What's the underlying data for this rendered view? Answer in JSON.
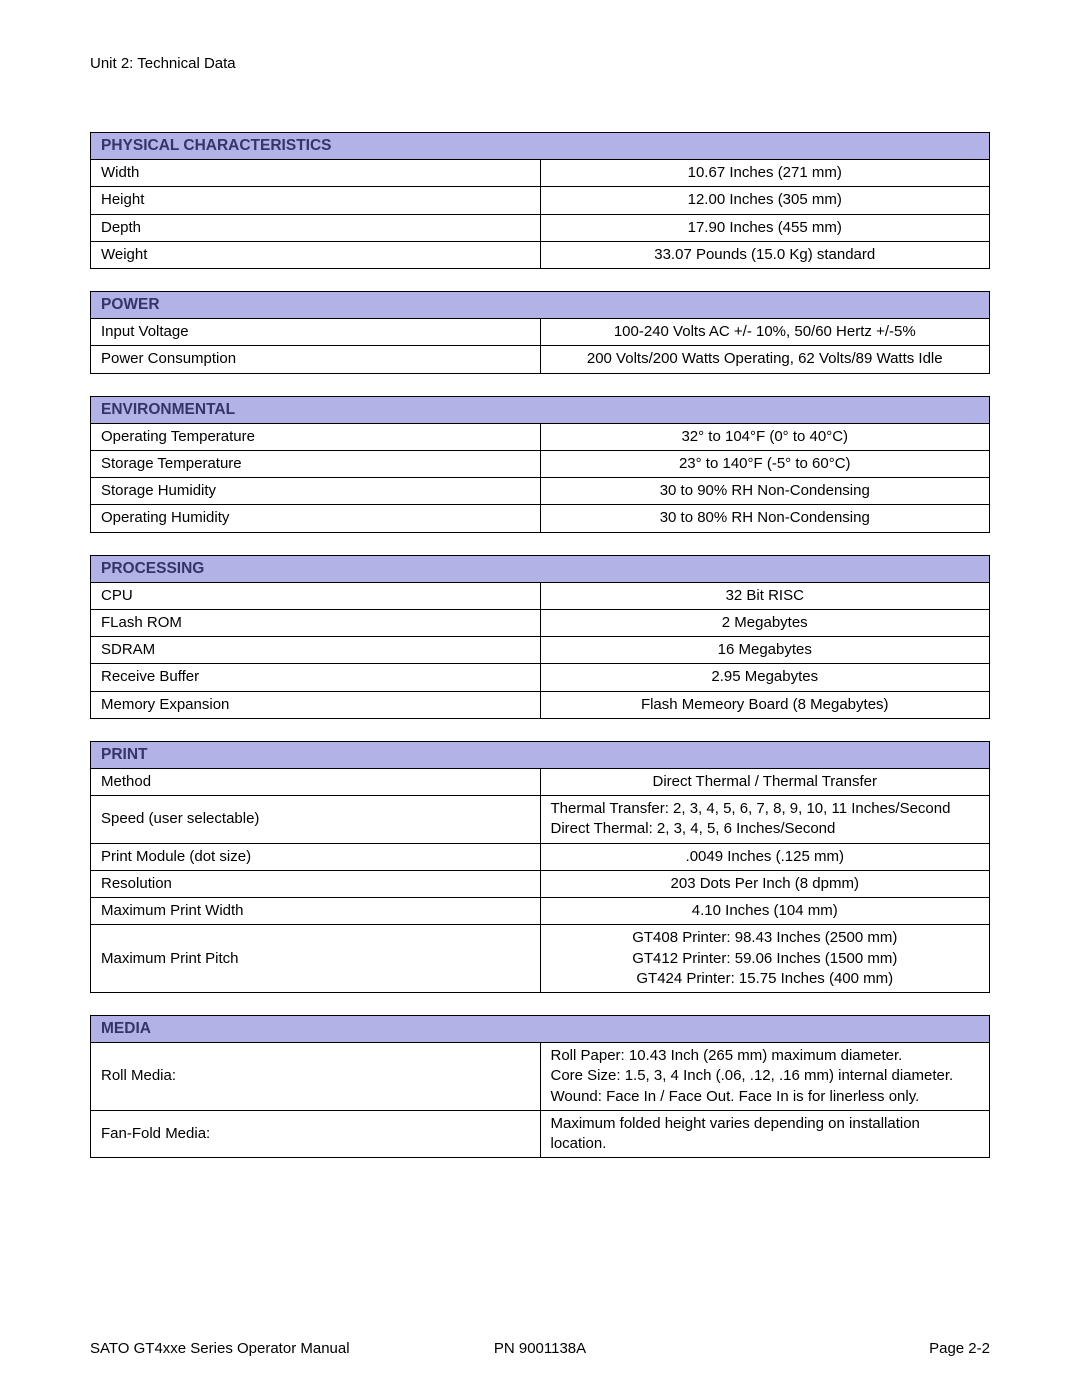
{
  "page_header": "Unit 2: Technical Data",
  "footer": {
    "left": "SATO GT4xxe Series Operator Manual",
    "mid": "PN  9001138A",
    "right": "Page 2-2"
  },
  "colors": {
    "header_bg": "#b2b2e6",
    "header_text": "#343466",
    "border": "#000000",
    "background": "#ffffff",
    "body_text": "#000000"
  },
  "tables": [
    {
      "title": "PHYSICAL CHARACTERISTICS",
      "value_align": "center",
      "rows": [
        {
          "label": "Width",
          "value": "10.67 Inches (271 mm)"
        },
        {
          "label": "Height",
          "value": "12.00 Inches (305 mm)"
        },
        {
          "label": "Depth",
          "value": "17.90 Inches (455 mm)"
        },
        {
          "label": "Weight",
          "value": "33.07 Pounds (15.0 Kg) standard"
        }
      ]
    },
    {
      "title": "POWER",
      "value_align": "center",
      "rows": [
        {
          "label": "Input Voltage",
          "value": "100-240 Volts AC +/- 10%, 50/60 Hertz +/-5%"
        },
        {
          "label": "Power Consumption",
          "value": "200 Volts/200 Watts Operating, 62 Volts/89 Watts Idle"
        }
      ]
    },
    {
      "title": "ENVIRONMENTAL",
      "value_align": "center",
      "rows": [
        {
          "label": "Operating Temperature",
          "value": "32° to 104°F (0° to 40°C)"
        },
        {
          "label": "Storage Temperature",
          "value": "23° to 140°F (-5° to 60°C)"
        },
        {
          "label": "Storage Humidity",
          "value": "30 to 90% RH Non-Condensing"
        },
        {
          "label": "Operating Humidity",
          "value": "30 to 80% RH Non-Condensing"
        }
      ]
    },
    {
      "title": "PROCESSING",
      "value_align": "center",
      "rows": [
        {
          "label": "CPU",
          "value": "32 Bit RISC"
        },
        {
          "label": "FLash ROM",
          "value": "2 Megabytes"
        },
        {
          "label": "SDRAM",
          "value": "16 Megabytes"
        },
        {
          "label": "Receive Buffer",
          "value": "2.95 Megabytes"
        },
        {
          "label": "Memory Expansion",
          "value": "Flash Memeory Board (8 Megabytes)"
        }
      ]
    },
    {
      "title": "PRINT",
      "value_align": "center",
      "rows": [
        {
          "label": "Method",
          "value": "Direct Thermal / Thermal Transfer"
        },
        {
          "label": "Speed (user selectable)",
          "value": "Thermal Transfer:  2, 3, 4, 5, 6, 7, 8, 9, 10, 11 Inches/Second\nDirect Thermal:   2, 3, 4, 5, 6 Inches/Second",
          "align": "left"
        },
        {
          "label": "Print Module (dot size)",
          "value": ".0049 Inches (.125 mm)"
        },
        {
          "label": "Resolution",
          "value": "203 Dots Per Inch (8 dpmm)"
        },
        {
          "label": "Maximum Print Width",
          "value": "4.10 Inches (104 mm)"
        },
        {
          "label": "Maximum Print Pitch",
          "value": "GT408 Printer: 98.43 Inches (2500 mm)\nGT412 Printer: 59.06 Inches (1500 mm)\nGT424 Printer: 15.75 Inches (400 mm)"
        }
      ]
    },
    {
      "title": "MEDIA",
      "value_align": "left",
      "rows": [
        {
          "label": "Roll Media:",
          "value": "Roll Paper: 10.43 Inch (265 mm) maximum diameter.\nCore Size: 1.5, 3, 4 Inch (.06, .12, .16 mm) internal diameter.\nWound: Face In / Face Out. Face In is for linerless only."
        },
        {
          "label": "Fan-Fold Media:",
          "value": "Maximum folded height varies depending on installation location."
        }
      ]
    }
  ]
}
